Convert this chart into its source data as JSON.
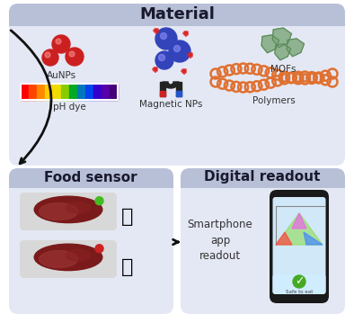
{
  "bg_color": "#ffffff",
  "panel_header_color": "#b8c0d8",
  "panel_body_color": "#e4e8f4",
  "title_material": "Material",
  "title_food": "Food sensor",
  "title_digital": "Digital readout",
  "label_aunps": "AuNPs",
  "label_magnetic": "Magnetic NPs",
  "label_mofs": "MOFs",
  "label_phdye": "pH dye",
  "label_polymers": "Polymers",
  "label_smartphone": "Smartphone\napp\nreadout",
  "label_safe": "Safe to eat",
  "aunp_color": "#cc2020",
  "magnetic_color": "#3344bb",
  "mof_color": "#80aa80",
  "polymer_color": "#e07030",
  "spark_color": "#cc2020",
  "thumbup_color": "#44bb22",
  "thumbdown_color": "#cc2222",
  "arrow_color": "#111111",
  "label_color": "#333333",
  "title_color": "#1a1a2e",
  "magnet_color": "#222222",
  "magnet_red": "#cc2222",
  "magnet_blue": "#2255cc"
}
